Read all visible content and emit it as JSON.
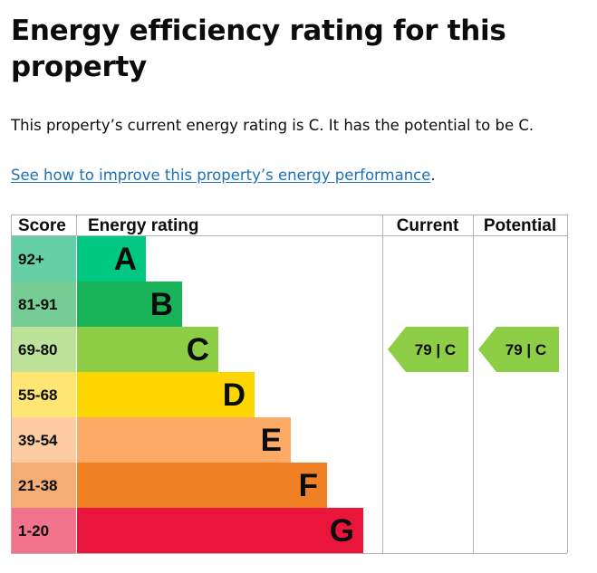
{
  "page": {
    "title": "Energy efficiency rating for this property",
    "summary": "This property’s current energy rating is C. It has the potential to be C.",
    "improve_link": "See how to improve this property’s energy performance",
    "improve_link_suffix": "."
  },
  "chart_data": {
    "type": "bar",
    "columns": [
      "Score",
      "Energy rating",
      "Current",
      "Potential"
    ],
    "bands": [
      {
        "band": "A",
        "score_range": "92+",
        "color": "#00c781",
        "score_bg": "#67cfa5"
      },
      {
        "band": "B",
        "score_range": "81-91",
        "color": "#19b459",
        "score_bg": "#75cc95"
      },
      {
        "band": "C",
        "score_range": "69-80",
        "color": "#8dce46",
        "score_bg": "#bde39a"
      },
      {
        "band": "D",
        "score_range": "55-68",
        "color": "#ffd500",
        "score_bg": "#ffe673"
      },
      {
        "band": "E",
        "score_range": "39-54",
        "color": "#fcaa65",
        "score_bg": "#fdcca3"
      },
      {
        "band": "F",
        "score_range": "21-38",
        "color": "#ef8023",
        "score_bg": "#f5ad73"
      },
      {
        "band": "G",
        "score_range": "1-20",
        "color": "#e9153b",
        "score_bg": "#f2738b"
      }
    ],
    "current": {
      "score": 79,
      "band": "C",
      "label": "79 | C",
      "color": "#8dce46"
    },
    "potential": {
      "score": 79,
      "band": "C",
      "label": "79 | C",
      "color": "#8dce46"
    }
  }
}
